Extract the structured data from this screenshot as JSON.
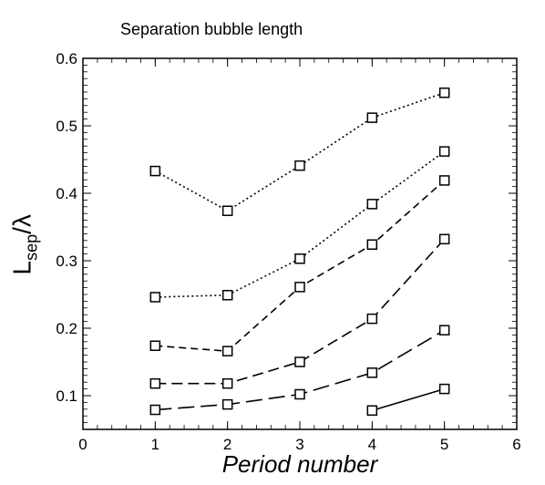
{
  "chart_data": {
    "type": "line",
    "title": "Separation bubble length",
    "xlabel": "Period number",
    "ylabel_main": "L",
    "ylabel_sub": "sep",
    "ylabel_tail": "/λ",
    "xlim": [
      0,
      6
    ],
    "ylim": [
      0.05,
      0.6
    ],
    "xticks": [
      "0",
      "1",
      "2",
      "3",
      "4",
      "5",
      "6"
    ],
    "yticks": [
      "0.1",
      "0.2",
      "0.3",
      "0.4",
      "0.5",
      "0.6"
    ],
    "grid": false,
    "marker": "square",
    "series": [
      {
        "dash": "2,3",
        "points": [
          [
            1,
            0.433
          ],
          [
            2,
            0.374
          ],
          [
            3,
            0.441
          ],
          [
            4,
            0.512
          ],
          [
            5,
            0.549
          ]
        ]
      },
      {
        "dash": "2,3",
        "points": [
          [
            1,
            0.246
          ],
          [
            2,
            0.249
          ],
          [
            3,
            0.303
          ],
          [
            4,
            0.384
          ],
          [
            5,
            0.462
          ]
        ]
      },
      {
        "dash": "8,5",
        "points": [
          [
            1,
            0.174
          ],
          [
            2,
            0.166
          ],
          [
            3,
            0.261
          ],
          [
            4,
            0.324
          ],
          [
            5,
            0.419
          ]
        ]
      },
      {
        "dash": "12,6",
        "points": [
          [
            1,
            0.118
          ],
          [
            2,
            0.118
          ],
          [
            3,
            0.15
          ],
          [
            4,
            0.214
          ],
          [
            5,
            0.332
          ]
        ]
      },
      {
        "dash": "18,7",
        "points": [
          [
            1,
            0.079
          ],
          [
            2,
            0.087
          ],
          [
            3,
            0.102
          ],
          [
            4,
            0.134
          ],
          [
            5,
            0.197
          ]
        ]
      },
      {
        "dash": "",
        "points": [
          [
            4,
            0.078
          ],
          [
            5,
            0.11
          ]
        ]
      }
    ]
  }
}
